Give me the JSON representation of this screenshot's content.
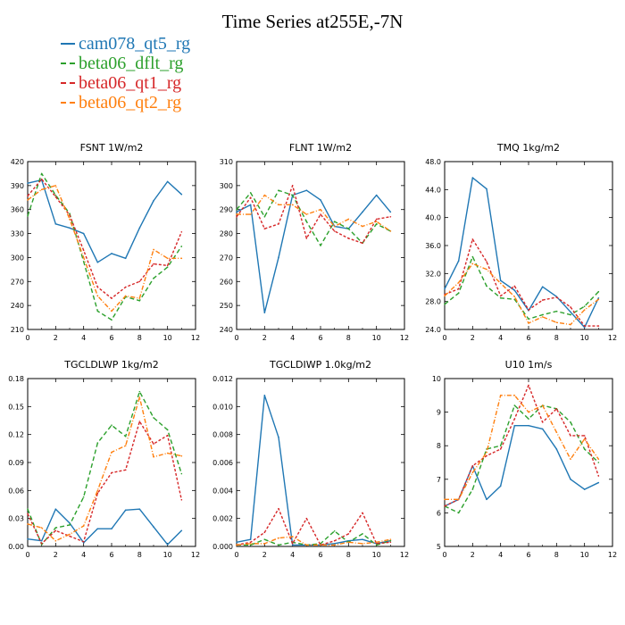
{
  "title": "Time Series at255E,-7N",
  "legend": [
    {
      "name": "cam078_qt5_rg",
      "color": "#1f77b4",
      "dash": false
    },
    {
      "name": "beta06_dflt_rg",
      "color": "#2ca02c",
      "dash": true
    },
    {
      "name": "beta06_qt1_rg",
      "color": "#d62728",
      "dash": true
    },
    {
      "name": "beta06_qt2_rg",
      "color": "#ff7f0e",
      "dash": true
    }
  ],
  "chart_data": [
    {
      "type": "line",
      "title": "FSNT   1W/m2",
      "xlim": [
        0,
        12
      ],
      "xticks": [
        0,
        2,
        4,
        6,
        8,
        10,
        12
      ],
      "xticklabels": [
        "0",
        "2",
        "4",
        "6",
        "8",
        "10",
        "12"
      ],
      "ylim": [
        210,
        420
      ],
      "yticks": [
        210,
        240,
        270,
        300,
        330,
        360,
        390,
        420
      ],
      "yticklabels": [
        "210",
        "240",
        "270",
        "300",
        "330",
        "360",
        "390",
        "420"
      ],
      "x": [
        0,
        1,
        2,
        3,
        4,
        5,
        6,
        7,
        8,
        9,
        10,
        11
      ],
      "series": [
        {
          "name": "cam078_qt5_rg",
          "values": [
            393,
            397,
            342,
            337,
            330,
            294,
            305,
            299,
            337,
            371,
            395,
            379
          ]
        },
        {
          "name": "beta06_dflt_rg",
          "values": [
            352,
            405,
            378,
            355,
            295,
            233,
            222,
            251,
            246,
            274,
            288,
            314
          ]
        },
        {
          "name": "beta06_qt1_rg",
          "values": [
            377,
            398,
            376,
            353,
            309,
            263,
            249,
            263,
            270,
            292,
            290,
            332
          ]
        },
        {
          "name": "beta06_qt2_rg",
          "values": [
            372,
            385,
            390,
            348,
            300,
            252,
            233,
            252,
            249,
            310,
            299,
            299
          ]
        }
      ]
    },
    {
      "type": "line",
      "title": "FLNT   1W/m2",
      "xlim": [
        0,
        12
      ],
      "xticks": [
        0,
        2,
        4,
        6,
        8,
        10,
        12
      ],
      "xticklabels": [
        "0",
        "2",
        "4",
        "6",
        "8",
        "10",
        "12"
      ],
      "ylim": [
        240,
        310
      ],
      "yticks": [
        240,
        250,
        260,
        270,
        280,
        290,
        300,
        310
      ],
      "yticklabels": [
        "240",
        "250",
        "260",
        "270",
        "280",
        "290",
        "300",
        "310"
      ],
      "x": [
        0,
        1,
        2,
        3,
        4,
        5,
        6,
        7,
        8,
        9,
        10,
        11
      ],
      "series": [
        {
          "name": "cam078_qt5_rg",
          "values": [
            289,
            292,
            247,
            270,
            296,
            298,
            294,
            283,
            282,
            289,
            296,
            289
          ]
        },
        {
          "name": "beta06_dflt_rg",
          "values": [
            290,
            297,
            287,
            298,
            296,
            285,
            275,
            285,
            282,
            276,
            284,
            281
          ]
        },
        {
          "name": "beta06_qt1_rg",
          "values": [
            287,
            295,
            282,
            284,
            300,
            278,
            288,
            281,
            278,
            276,
            286,
            287
          ]
        },
        {
          "name": "beta06_qt2_rg",
          "values": [
            288,
            288,
            296,
            292,
            292,
            288,
            290,
            283,
            286,
            283,
            285,
            281
          ]
        }
      ]
    },
    {
      "type": "line",
      "title": "TMQ   1kg/m2",
      "xlim": [
        0,
        12
      ],
      "xticks": [
        0,
        2,
        4,
        6,
        8,
        10,
        12
      ],
      "xticklabels": [
        "0",
        "2",
        "4",
        "6",
        "8",
        "10",
        "12"
      ],
      "ylim": [
        24,
        48
      ],
      "yticks": [
        24,
        28,
        32,
        36,
        40,
        44,
        48
      ],
      "yticklabels": [
        "24.0",
        "28.0",
        "32.0",
        "36.0",
        "40.0",
        "44.0",
        "48.0"
      ],
      "x": [
        0,
        1,
        2,
        3,
        4,
        5,
        6,
        7,
        8,
        9,
        10,
        11
      ],
      "series": [
        {
          "name": "cam078_qt5_rg",
          "values": [
            29.8,
            33.8,
            45.7,
            44.1,
            31.0,
            29.6,
            26.7,
            30.1,
            28.7,
            26.5,
            24.3,
            28.5
          ]
        },
        {
          "name": "beta06_dflt_rg",
          "values": [
            27.6,
            29.2,
            34.4,
            30.2,
            28.5,
            28.3,
            25.5,
            26.1,
            26.6,
            26.1,
            27.3,
            29.4
          ]
        },
        {
          "name": "beta06_qt1_rg",
          "values": [
            29.0,
            29.8,
            36.9,
            33.7,
            28.8,
            30.2,
            26.8,
            28.2,
            28.6,
            27.2,
            24.5,
            24.5
          ]
        },
        {
          "name": "beta06_qt2_rg",
          "values": [
            28.8,
            30.7,
            33.4,
            32.6,
            30.6,
            28.7,
            24.9,
            25.8,
            25.0,
            24.7,
            26.8,
            28.3
          ]
        }
      ]
    },
    {
      "type": "line",
      "title": "TGCLDLWP   1kg/m2",
      "xlim": [
        0,
        12
      ],
      "xticks": [
        0,
        2,
        4,
        6,
        8,
        10,
        12
      ],
      "xticklabels": [
        "0",
        "2",
        "4",
        "6",
        "8",
        "10",
        "12"
      ],
      "ylim": [
        0,
        0.18
      ],
      "yticks": [
        0,
        0.03,
        0.06,
        0.09,
        0.12,
        0.15,
        0.18
      ],
      "yticklabels": [
        "0.00",
        "0.03",
        "0.06",
        "0.09",
        "0.12",
        "0.15",
        "0.18"
      ],
      "x": [
        0,
        1,
        2,
        3,
        4,
        5,
        6,
        7,
        8,
        9,
        10,
        11
      ],
      "series": [
        {
          "name": "cam078_qt5_rg",
          "values": [
            0.008,
            0.006,
            0.04,
            0.025,
            0.004,
            0.019,
            0.019,
            0.039,
            0.04,
            0.021,
            0.002,
            0.017
          ]
        },
        {
          "name": "beta06_dflt_rg",
          "values": [
            0.04,
            0.002,
            0.02,
            0.023,
            0.053,
            0.111,
            0.13,
            0.118,
            0.166,
            0.138,
            0.125,
            0.078
          ]
        },
        {
          "name": "beta06_qt1_rg",
          "values": [
            0.035,
            0.003,
            0.017,
            0.011,
            0.005,
            0.057,
            0.079,
            0.082,
            0.134,
            0.11,
            0.119,
            0.05
          ]
        },
        {
          "name": "beta06_qt2_rg",
          "values": [
            0.024,
            0.02,
            0.006,
            0.013,
            0.022,
            0.06,
            0.101,
            0.108,
            0.16,
            0.096,
            0.1,
            0.097
          ]
        }
      ]
    },
    {
      "type": "line",
      "title": "TGCLDIWP   1.0kg/m2",
      "xlim": [
        0,
        12
      ],
      "xticks": [
        0,
        2,
        4,
        6,
        8,
        10,
        12
      ],
      "xticklabels": [
        "0",
        "2",
        "4",
        "6",
        "8",
        "10",
        "12"
      ],
      "ylim": [
        0,
        0.012
      ],
      "yticks": [
        0,
        0.002,
        0.004,
        0.006,
        0.008,
        0.01,
        0.012
      ],
      "yticklabels": [
        "0.000",
        "0.002",
        "0.004",
        "0.006",
        "0.008",
        "0.010",
        "0.012"
      ],
      "x": [
        0,
        1,
        2,
        3,
        4,
        5,
        6,
        7,
        8,
        9,
        10,
        11
      ],
      "series": [
        {
          "name": "cam078_qt5_rg",
          "values": [
            0.0003,
            0.0005,
            0.0108,
            0.0078,
            0.0001,
            0.0001,
            0.0001,
            0.0002,
            0.0004,
            0.0005,
            0.0002,
            0.0004
          ]
        },
        {
          "name": "beta06_dflt_rg",
          "values": [
            0.0001,
            0.0001,
            0.0005,
            0.0001,
            0.0003,
            0.0001,
            0.0002,
            0.0011,
            0.0003,
            0.0009,
            0.0001,
            0.0004
          ]
        },
        {
          "name": "beta06_qt1_rg",
          "values": [
            0.0001,
            0.0003,
            0.001,
            0.0027,
            0.0002,
            0.002,
            0.0001,
            0.0004,
            0.0009,
            0.0024,
            0.0002,
            0.0003
          ]
        },
        {
          "name": "beta06_qt2_rg",
          "values": [
            0.0001,
            0.0002,
            0.0002,
            0.0006,
            0.0007,
            0.0001,
            0.0001,
            0.0001,
            0.0003,
            0.0002,
            0.0003,
            0.0005
          ]
        }
      ]
    },
    {
      "type": "line",
      "title": "U10   1m/s",
      "xlim": [
        0,
        12
      ],
      "xticks": [
        0,
        2,
        4,
        6,
        8,
        10,
        12
      ],
      "xticklabels": [
        "0",
        "2",
        "4",
        "6",
        "8",
        "10",
        "12"
      ],
      "ylim": [
        5,
        10
      ],
      "yticks": [
        5,
        6,
        7,
        8,
        9,
        10
      ],
      "yticklabels": [
        "5",
        "6",
        "7",
        "8",
        "9",
        "10"
      ],
      "x": [
        0,
        1,
        2,
        3,
        4,
        5,
        6,
        7,
        8,
        9,
        10,
        11
      ],
      "series": [
        {
          "name": "cam078_qt5_rg",
          "values": [
            6.2,
            6.4,
            7.4,
            6.4,
            6.8,
            8.6,
            8.6,
            8.5,
            7.9,
            7.0,
            6.7,
            6.9
          ]
        },
        {
          "name": "beta06_dflt_rg",
          "values": [
            6.2,
            6.0,
            6.7,
            7.9,
            8.0,
            9.2,
            8.8,
            9.2,
            9.1,
            8.7,
            7.9,
            7.5
          ]
        },
        {
          "name": "beta06_qt1_rg",
          "values": [
            6.2,
            6.4,
            7.4,
            7.7,
            7.9,
            8.8,
            9.8,
            8.7,
            9.1,
            8.3,
            8.3,
            7.1
          ]
        },
        {
          "name": "beta06_qt2_rg",
          "values": [
            6.4,
            6.4,
            7.2,
            7.8,
            9.5,
            9.5,
            9.0,
            9.2,
            8.4,
            7.6,
            8.2,
            7.6
          ]
        }
      ]
    }
  ]
}
